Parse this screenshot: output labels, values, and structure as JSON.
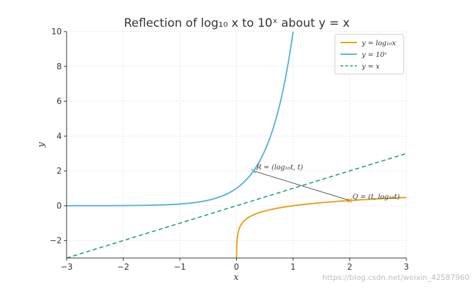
{
  "chart_data": {
    "type": "line",
    "title": "Reflection of log₁₀ x to 10ˣ about y = x",
    "xlabel": "x",
    "ylabel": "y",
    "xlim": [
      -3,
      3
    ],
    "ylim": [
      -3,
      10
    ],
    "xticks": [
      -3,
      -2,
      -1,
      0,
      1,
      2,
      3
    ],
    "yticks": [
      -2,
      0,
      2,
      4,
      6,
      8,
      10
    ],
    "xtick_labels": [
      "−3",
      "−2",
      "−1",
      "0",
      "1",
      "2",
      "3"
    ],
    "ytick_labels": [
      "−2",
      "0",
      "2",
      "4",
      "6",
      "8",
      "10"
    ],
    "grid": true,
    "legend_position": "top-right",
    "series": [
      {
        "name": "y = log₁₀x",
        "function": "log10",
        "x_range": [
          0.001,
          3
        ],
        "color": "#e5a11c",
        "style": "solid"
      },
      {
        "name": "y = 10ˣ",
        "function": "pow10",
        "x_range": [
          -3,
          1.0
        ],
        "color": "#5ab4dc",
        "style": "solid"
      },
      {
        "name": "y = x",
        "function": "identity",
        "x_range": [
          -3,
          3
        ],
        "color": "#1f9e77",
        "style": "dashed"
      }
    ],
    "annotations": [
      {
        "label": "R = (log₁₀t, t)",
        "x": 0.301,
        "y": 2.0
      },
      {
        "label": "Q = (t, log₁₀t)",
        "x": 2.0,
        "y": 0.301
      }
    ],
    "connector": {
      "from": [
        0.301,
        2.0
      ],
      "to": [
        2.0,
        0.301
      ],
      "color": "#333333"
    }
  },
  "watermark": "https://blog.csdn.net/weixin_42587960"
}
